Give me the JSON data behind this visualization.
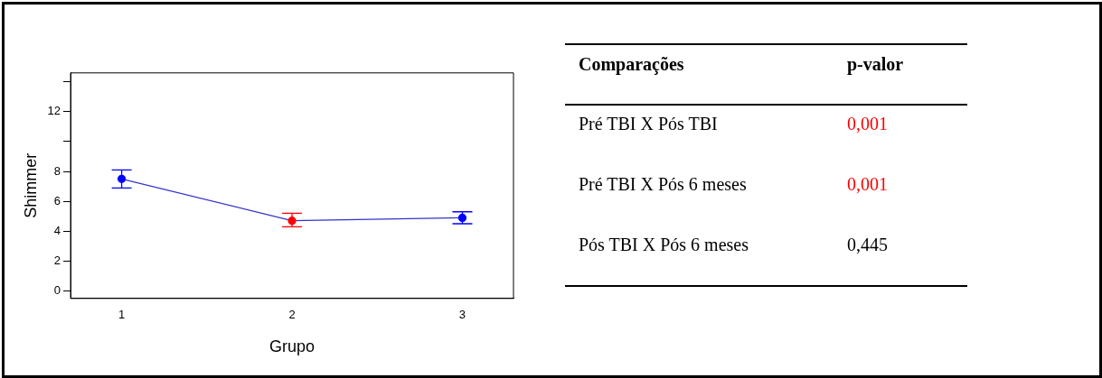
{
  "chart_data": [
    {
      "type": "line",
      "xlabel": "Grupo",
      "ylabel": "Shimmer",
      "x": [
        1,
        2,
        3
      ],
      "series": [
        {
          "color": "#3333cc",
          "colors": [
            "#0000ff",
            "#ff0000",
            "#0000ff"
          ],
          "values": [
            7.5,
            4.7,
            4.9
          ],
          "errors": [
            [
              6.9,
              8.1
            ],
            [
              4.3,
              5.2
            ],
            [
              4.5,
              5.3
            ]
          ]
        }
      ],
      "xlim": [
        0.7,
        3.3
      ],
      "xticks": [
        1,
        2,
        3
      ],
      "ylim": [
        -0.5,
        14.6
      ],
      "yticks": [
        0,
        2,
        4,
        6,
        8,
        {
          "value": 10,
          "label": null
        },
        12,
        {
          "value": 14,
          "label": null
        }
      ],
      "grid": false,
      "legend": false,
      "marker": "circle",
      "line_style": "solid"
    },
    {
      "type": "other",
      "annotations": [
        "Comparações",
        "p-valor",
        "Pré TBI X Pós TBI",
        "0,001",
        "Pré TBI X Pós 6 meses",
        "0,001",
        "Pós TBI X Pós 6 meses",
        "0,445"
      ],
      "colors": [
        "#000000",
        "#000000",
        "#000000",
        "#ff0000",
        "#000000",
        "#ff0000",
        "#000000",
        "#000000"
      ]
    }
  ]
}
